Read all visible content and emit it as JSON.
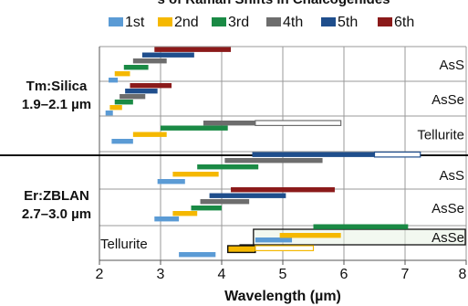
{
  "chart_data": {
    "type": "bar",
    "subtype": "horizontal-range",
    "title_fragment": "s of Raman Shifts in Chalcogenides",
    "xlabel": "Wavelength (µm)",
    "xlim": [
      2,
      8
    ],
    "xticks": [
      2,
      3,
      4,
      5,
      6,
      7,
      8
    ],
    "grid": true,
    "legend_placement": "top",
    "legend": [
      {
        "label": "1st",
        "color": "#5b9bd5"
      },
      {
        "label": "2nd",
        "color": "#f5b800"
      },
      {
        "label": "3rd",
        "color": "#1a8a45"
      },
      {
        "label": "4th",
        "color": "#6d6d6d"
      },
      {
        "label": "5th",
        "color": "#1f4e8c"
      },
      {
        "label": "6th",
        "color": "#8b1a1a"
      }
    ],
    "groups": [
      {
        "label_line1": "Tm:Silica",
        "label_line2": "1.9–2.1 µm",
        "rows": [
          {
            "material": "AsS",
            "bars": [
              {
                "order": 1,
                "start": 2.15,
                "end": 2.3
              },
              {
                "order": 2,
                "start": 2.25,
                "end": 2.5
              },
              {
                "order": 3,
                "start": 2.4,
                "end": 2.8
              },
              {
                "order": 4,
                "start": 2.55,
                "end": 3.1
              },
              {
                "order": 5,
                "start": 2.7,
                "end": 3.55
              },
              {
                "order": 6,
                "start": 2.9,
                "end": 4.15
              }
            ]
          },
          {
            "material": "AsSe",
            "bars": [
              {
                "order": 1,
                "start": 2.1,
                "end": 2.22
              },
              {
                "order": 2,
                "start": 2.17,
                "end": 2.37
              },
              {
                "order": 3,
                "start": 2.25,
                "end": 2.55
              },
              {
                "order": 4,
                "start": 2.33,
                "end": 2.75
              },
              {
                "order": 5,
                "start": 2.42,
                "end": 2.95
              },
              {
                "order": 6,
                "start": 2.5,
                "end": 3.18
              }
            ]
          },
          {
            "material": "Tellurite",
            "bars": [
              {
                "order": 1,
                "start": 2.2,
                "end": 2.55
              },
              {
                "order": 2,
                "start": 2.55,
                "end": 3.1
              },
              {
                "order": 3,
                "start": 3.0,
                "end": 4.1
              },
              {
                "order": 4,
                "start": 3.7,
                "end": 4.55
              },
              {
                "order": 4,
                "start": 4.55,
                "end": 5.95,
                "style": "outline"
              }
            ]
          }
        ]
      },
      {
        "label_line1": "Er:ZBLAN",
        "label_line2": "2.7–3.0 µm",
        "rows": [
          {
            "material": "AsS",
            "bars": [
              {
                "order": 1,
                "start": 2.95,
                "end": 3.4
              },
              {
                "order": 2,
                "start": 3.2,
                "end": 3.95
              },
              {
                "order": 3,
                "start": 3.6,
                "end": 4.6
              },
              {
                "order": 4,
                "start": 4.05,
                "end": 5.65
              },
              {
                "order": 5,
                "start": 4.5,
                "end": 6.5
              },
              {
                "order": 5,
                "start": 6.5,
                "end": 7.25,
                "style": "outline"
              }
            ]
          },
          {
            "material": "AsSe",
            "bars": [
              {
                "order": 1,
                "start": 2.9,
                "end": 3.3
              },
              {
                "order": 2,
                "start": 3.2,
                "end": 3.6
              },
              {
                "order": 3,
                "start": 3.5,
                "end": 4.0
              },
              {
                "order": 4,
                "start": 3.65,
                "end": 4.45
              },
              {
                "order": 5,
                "start": 3.8,
                "end": 5.05
              },
              {
                "order": 6,
                "start": 4.15,
                "end": 5.85
              }
            ]
          },
          {
            "material": "Tellurite",
            "material2": "AsSe",
            "bars": [
              {
                "order": 1,
                "start": 3.3,
                "end": 3.9
              },
              {
                "order": 1,
                "start": 4.55,
                "end": 5.15
              },
              {
                "order": 2,
                "start": 4.1,
                "end": 4.55,
                "style": "box"
              },
              {
                "order": 2,
                "start": 4.55,
                "end": 5.5,
                "style": "outline"
              },
              {
                "order": 2,
                "start": 4.95,
                "end": 5.95
              },
              {
                "order": 3,
                "start": 5.5,
                "end": 7.05
              }
            ]
          }
        ]
      }
    ]
  }
}
